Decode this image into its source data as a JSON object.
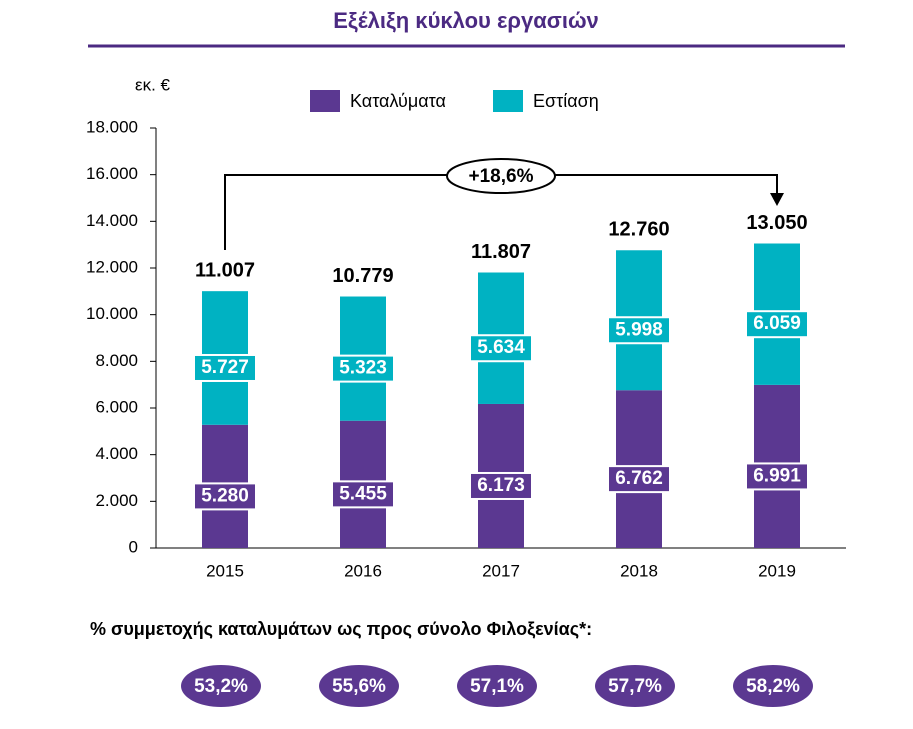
{
  "chart_data": {
    "type": "stacked_bar",
    "title": "Εξέλιξη κύκλου εργασιών",
    "y_label": "εκ. €",
    "categories": [
      "2015",
      "2016",
      "2017",
      "2018",
      "2019"
    ],
    "series": [
      {
        "name": "Καταλύματα",
        "color": "#5b3891",
        "values": [
          5280,
          5455,
          6173,
          6762,
          6991
        ],
        "value_labels": [
          "5.280",
          "5.455",
          "6.173",
          "6.762",
          "6.991"
        ]
      },
      {
        "name": "Εστίαση",
        "color": "#00b2c2",
        "values": [
          5727,
          5323,
          5634,
          5998,
          6059
        ],
        "value_labels": [
          "5.727",
          "5.323",
          "5.634",
          "5.998",
          "6.059"
        ]
      }
    ],
    "totals": {
      "values": [
        11007,
        10779,
        11807,
        12760,
        13050
      ],
      "value_labels": [
        "11.007",
        "10.779",
        "11.807",
        "12.760",
        "13.050"
      ]
    },
    "annotation": "+18,6%",
    "ylim": [
      0,
      18000
    ],
    "yticks": [
      0,
      {
        "value": 2000,
        "label": "2.000"
      },
      {
        "value": 4000,
        "label": "4.000"
      },
      {
        "value": 6000,
        "label": "6.000"
      },
      {
        "value": 8000,
        "label": "8.000"
      },
      {
        "value": 10000,
        "label": "10.000"
      },
      {
        "value": 12000,
        "label": "12.000"
      },
      {
        "value": 14000,
        "label": "14.000"
      },
      {
        "value": 16000,
        "label": "16.000"
      },
      {
        "value": 18000,
        "label": "18.000"
      }
    ],
    "legend": "top",
    "share": {
      "title": "% συμμετοχής καταλυμάτων ως προς σύνολο Φιλοξενίας*:",
      "color": "#5b3891",
      "values": [
        53.2,
        55.6,
        57.1,
        57.7,
        58.2
      ],
      "value_labels": [
        "53,2%",
        "55,6%",
        "57,1%",
        "57,7%",
        "58,2%"
      ]
    }
  }
}
